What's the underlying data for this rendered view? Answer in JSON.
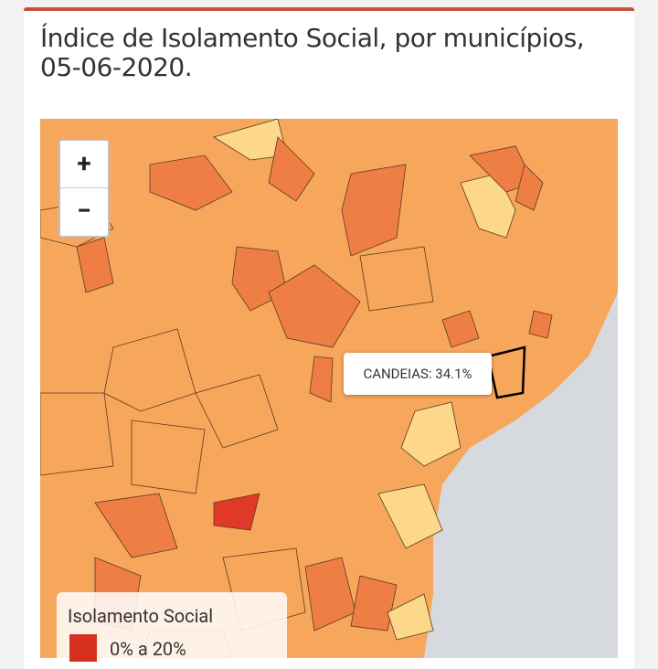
{
  "header": {
    "title": "Índice de Isolamento Social, por municípios, 05-06-2020."
  },
  "zoom": {
    "in": "+",
    "out": "−"
  },
  "tooltip": "CANDEIAS: 34.1%",
  "legend": {
    "title": "Isolamento Social",
    "items": [
      "0% a 20%"
    ]
  }
}
